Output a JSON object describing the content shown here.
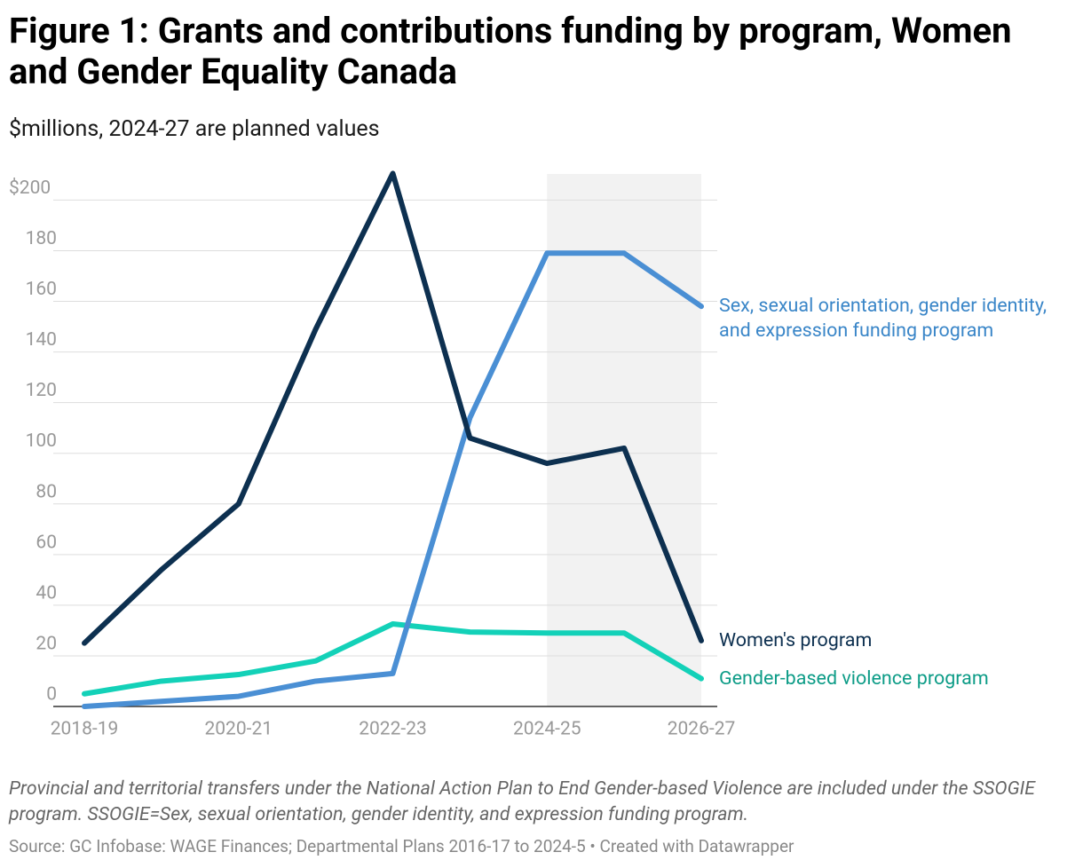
{
  "chart_data": {
    "type": "line",
    "title": "Figure 1: Grants and contributions funding by program, Women and Gender Equality Canada",
    "subtitle": "$millions, 2024-27 are planned values",
    "categories": [
      "2018-19",
      null,
      "2020-21",
      null,
      "2022-23",
      null,
      "2024-25",
      null,
      "2026-27"
    ],
    "series": [
      {
        "name": "Women's program",
        "color": "#0d3050",
        "label_color": "#0d3050",
        "values": [
          25,
          54,
          80,
          149,
          210.5,
          106,
          96,
          102,
          26
        ]
      },
      {
        "name": "Sex, sexual orientation, gender identity, and expression funding program",
        "color": "#4a8fd4",
        "label_color": "#3a86c8",
        "values": [
          0,
          2,
          4,
          10,
          13,
          114,
          179,
          179,
          158
        ]
      },
      {
        "name": "Gender-based violence program",
        "color": "#13d1b8",
        "label_color": "#0d9c87",
        "values": [
          5,
          10,
          12.6,
          18,
          32.6,
          29.4,
          29,
          29,
          11
        ]
      }
    ],
    "ylim": [
      0,
      211
    ],
    "yticks": [
      0,
      20,
      40,
      60,
      80,
      100,
      120,
      140,
      160,
      180,
      {
        "value": 200,
        "label": "$200"
      }
    ],
    "grid": true,
    "shade": {
      "from": "2024-25",
      "to": "2026-27",
      "color": "#f2f2f2"
    },
    "note": "Provincial and territorial transfers under the National Action Plan to End Gender-based Violence are included under the SSOGIE program. SSOGIE=Sex, sexual orientation, gender identity, and expression funding program.",
    "source": "Source: GC Infobase: WAGE Finances; Departmental Plans 2016-17 to 2024-5 • Created with Datawrapper"
  }
}
